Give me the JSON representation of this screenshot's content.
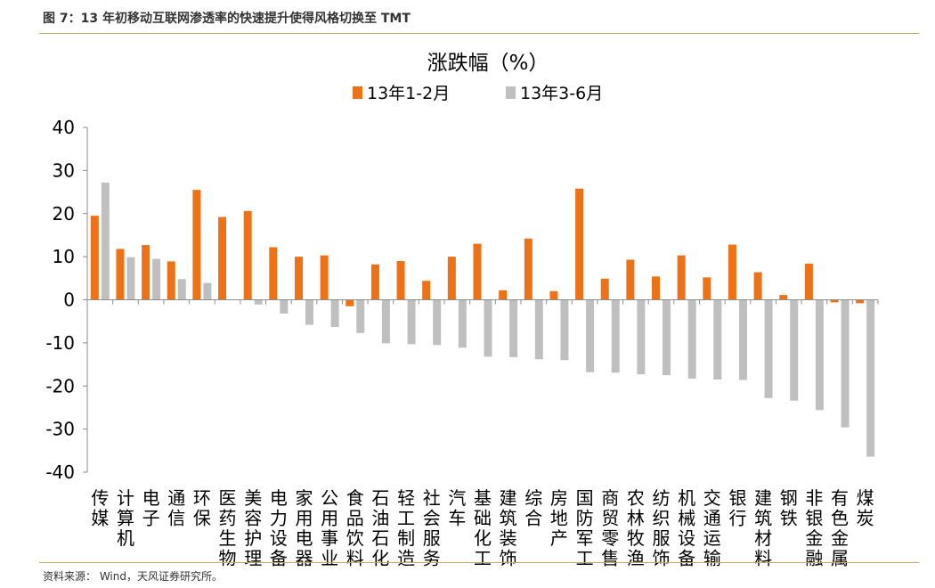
{
  "figure": {
    "title": "图 7：13 年初移动互联网渗透率的快速提升使得风格切换至 TMT",
    "source": "资料来源：  Wind，天风证券研究所。"
  },
  "colors": {
    "series1": "#ED7117",
    "series2": "#BFBFBF",
    "rule": "#C8A45C",
    "axis": "#8C8C8C"
  },
  "chart_data": {
    "type": "bar",
    "title": "涨跌幅（%）",
    "xlabel": "",
    "ylabel": "",
    "ylim": [
      -40,
      40
    ],
    "yticks": [
      40,
      30,
      20,
      10,
      0,
      -10,
      -20,
      -30,
      -40
    ],
    "grid": false,
    "legend": "top-center",
    "categories": [
      "传媒",
      "计算机",
      "电子",
      "通信",
      "环保",
      "医药生物",
      "美容护理",
      "电力设备",
      "家用电器",
      "公用事业",
      "食品饮料",
      "石油石化",
      "轻工制造",
      "社会服务",
      "汽车",
      "基础化工",
      "建筑装饰",
      "综合",
      "房地产",
      "国防军工",
      "商贸零售",
      "农林牧渔",
      "纺织服饰",
      "机械设备",
      "交通运输",
      "银行",
      "建筑材料",
      "钢铁",
      "非银金融",
      "有色金属",
      "煤炭"
    ],
    "series": [
      {
        "name": "13年1-2月",
        "values": [
          19.5,
          11.8,
          12.7,
          8.9,
          25.5,
          19.2,
          20.6,
          12.2,
          10.0,
          10.3,
          -1.5,
          8.2,
          9.0,
          4.4,
          10.0,
          13.0,
          2.2,
          14.2,
          2.0,
          25.8,
          4.9,
          9.3,
          5.4,
          10.3,
          5.2,
          12.8,
          6.4,
          1.1,
          8.4,
          -0.6,
          -0.8
        ]
      },
      {
        "name": "13年3-6月",
        "values": [
          27.2,
          9.9,
          9.5,
          4.8,
          3.9,
          0.0,
          -1.1,
          -3.2,
          -5.8,
          -6.3,
          -7.7,
          -10.1,
          -10.3,
          -10.5,
          -11.1,
          -13.2,
          -13.3,
          -13.8,
          -14.0,
          -16.8,
          -16.9,
          -17.3,
          -17.5,
          -18.3,
          -18.5,
          -18.6,
          -22.8,
          -23.4,
          -25.6,
          -29.6,
          -36.4
        ]
      }
    ]
  }
}
